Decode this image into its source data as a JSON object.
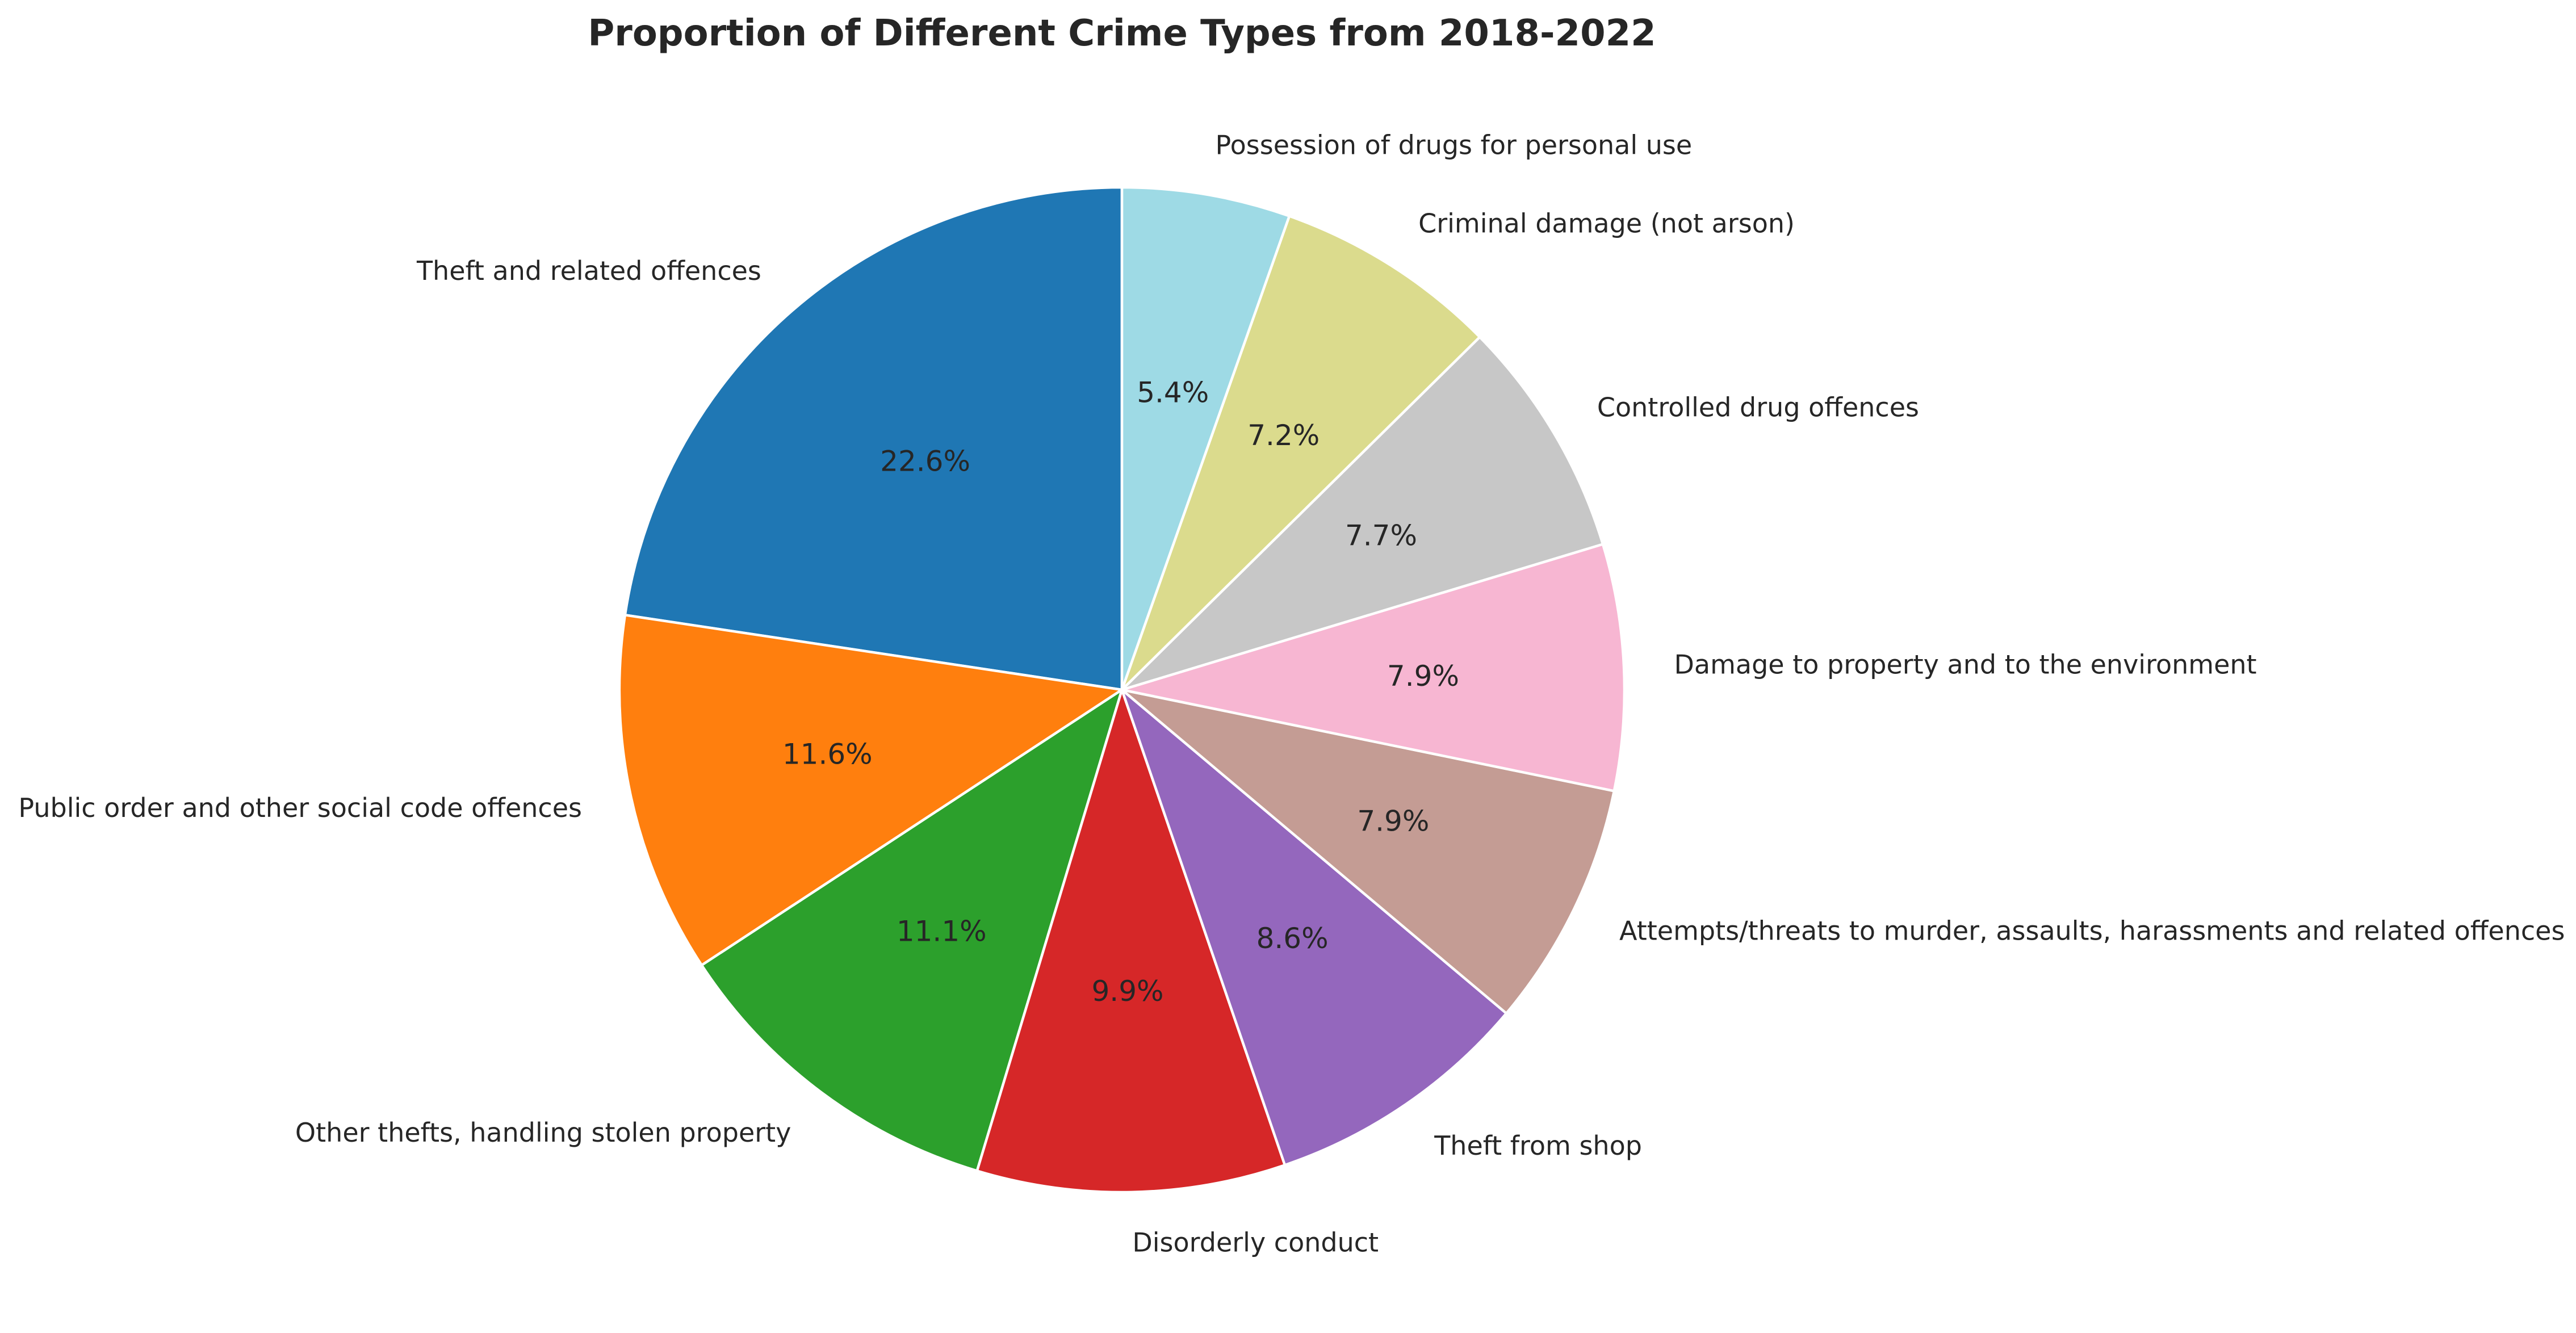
{
  "chart_data": {
    "type": "pie",
    "title": "Proportion of Different Crime Types from 2018-2022",
    "start_angle_deg": 90,
    "direction": "counterclockwise",
    "slices": [
      {
        "label": "Theft and related offences",
        "value": 22.6,
        "pct_label": "22.6%",
        "color": "#1f77b4"
      },
      {
        "label": "Public order and other social code offences",
        "value": 11.6,
        "pct_label": "11.6%",
        "color": "#ff7f0e"
      },
      {
        "label": "Other thefts, handling stolen property",
        "value": 11.1,
        "pct_label": "11.1%",
        "color": "#2ca02c"
      },
      {
        "label": "Disorderly conduct",
        "value": 9.9,
        "pct_label": "9.9%",
        "color": "#d62728"
      },
      {
        "label": "Theft from shop",
        "value": 8.6,
        "pct_label": "8.6%",
        "color": "#9467bd"
      },
      {
        "label": "Attempts/threats to murder, assaults, harassments and related offences",
        "value": 7.9,
        "pct_label": "7.9%",
        "color": "#c49c94"
      },
      {
        "label": "Damage to property and to the environment",
        "value": 7.9,
        "pct_label": "7.9%",
        "color": "#f7b6d2"
      },
      {
        "label": "Controlled drug offences",
        "value": 7.7,
        "pct_label": "7.7%",
        "color": "#c7c7c7"
      },
      {
        "label": "Criminal damage (not arson)",
        "value": 7.2,
        "pct_label": "7.2%",
        "color": "#dbdb8d"
      },
      {
        "label": "Possession of drugs for personal use",
        "value": 5.4,
        "pct_label": "5.4%",
        "color": "#9edae5"
      }
    ]
  }
}
